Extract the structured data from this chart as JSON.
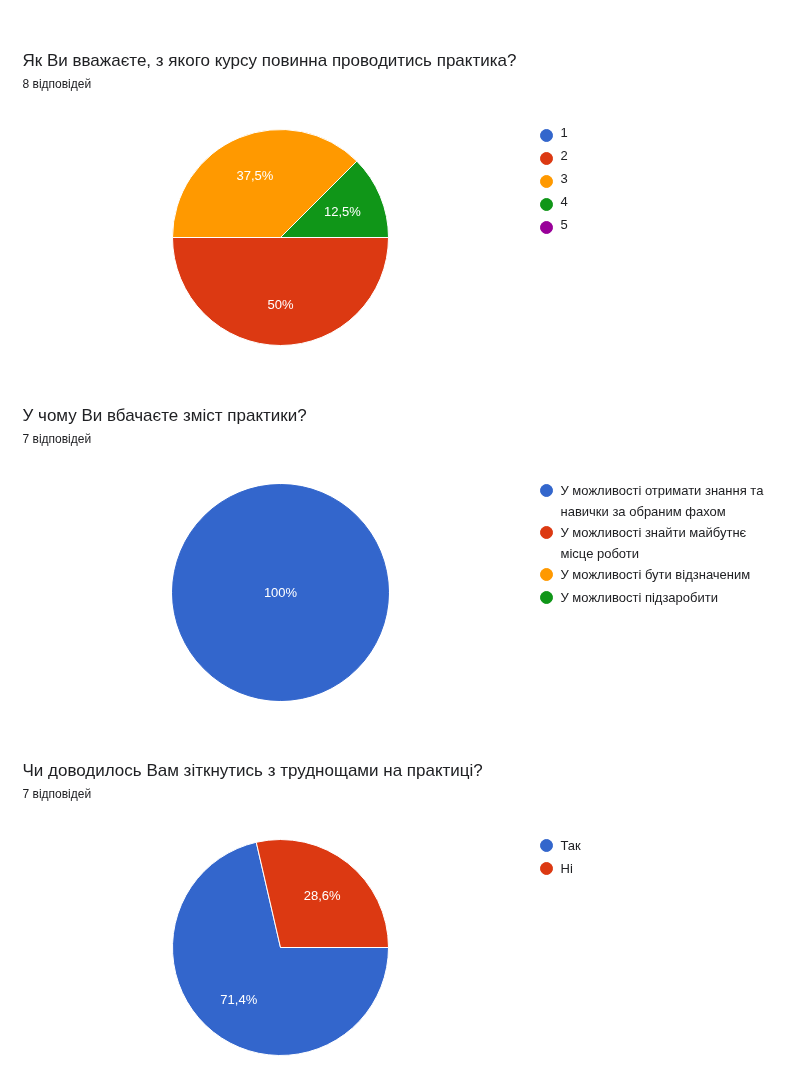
{
  "chart_data": [
    {
      "type": "pie",
      "title": "Як Ви вважаєте, з якого курсу повинна проводитись практика?",
      "subtitle": "8 відповідей",
      "categories": [
        "1",
        "2",
        "3",
        "4",
        "5"
      ],
      "values": [
        0,
        50,
        37.5,
        12.5,
        0
      ],
      "colors": [
        "#3366cc",
        "#dc3912",
        "#ff9900",
        "#109618",
        "#990099"
      ],
      "value_labels": [
        null,
        "50%",
        "37,5%",
        "12,5%",
        null
      ],
      "legend": "right"
    },
    {
      "type": "pie",
      "title": "У чому Ви вбачаєте зміст практики?",
      "subtitle": "7 відповідей",
      "categories": [
        "У можливості отримати знання та навички за обраним фахом",
        "У можливості знайти майбутнє місце роботи",
        "У можливості бути відзначеним",
        "У можливості підзаробити"
      ],
      "values": [
        100,
        0,
        0,
        0
      ],
      "colors": [
        "#3366cc",
        "#dc3912",
        "#ff9900",
        "#109618"
      ],
      "value_labels": [
        "100%",
        null,
        null,
        null
      ],
      "legend": "right"
    },
    {
      "type": "pie",
      "title": "Чи доводилось Вам зіткнутись з труднощами на практиці?",
      "subtitle": "7 відповідей",
      "categories": [
        "Так",
        "Ні"
      ],
      "values": [
        71.4,
        28.6
      ],
      "colors": [
        "#3366cc",
        "#dc3912"
      ],
      "value_labels": [
        "71,4%",
        "28,6%"
      ],
      "legend": "right"
    }
  ]
}
